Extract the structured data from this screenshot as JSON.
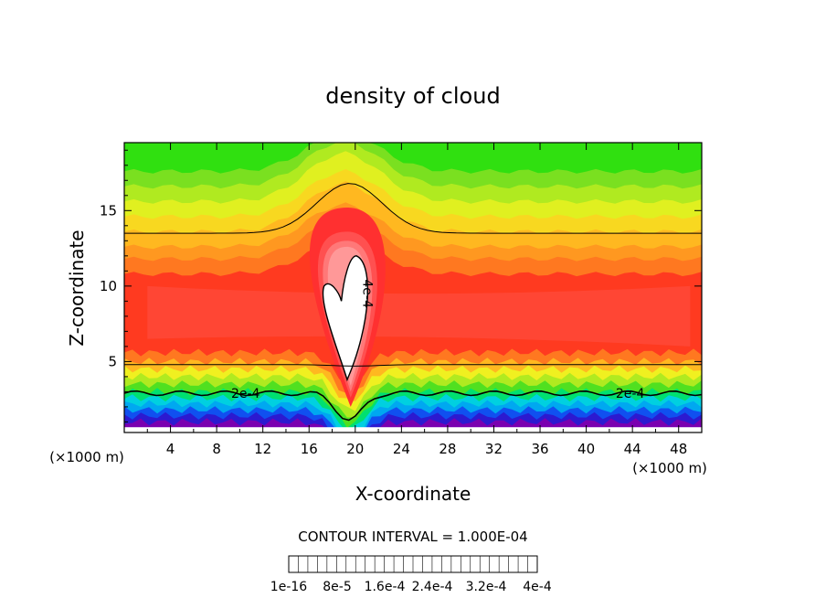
{
  "chart_data": {
    "type": "contour",
    "title": "density of cloud",
    "xlabel": "X-coordinate",
    "ylabel": "Z-coordinate",
    "x_unit": "(×1000 m)",
    "x_unit_right": "(×1000 m)",
    "xlim": [
      0,
      50
    ],
    "ylim": [
      0.3,
      19.5
    ],
    "x_ticks": [
      4,
      8,
      12,
      16,
      20,
      24,
      28,
      32,
      36,
      40,
      44,
      48
    ],
    "y_ticks": [
      5,
      10,
      15
    ],
    "contour_interval_text": "CONTOUR INTERVAL = 1.000E-04",
    "contour_labels": [
      {
        "text": "2e-4",
        "x": 10.5,
        "z": 2.9
      },
      {
        "text": "2e-4",
        "x": 43.8,
        "z": 2.9
      },
      {
        "text": "4e-4",
        "x": 20.7,
        "z": 9.5
      }
    ],
    "colorbar": {
      "colors": [
        "#7a00b0",
        "#5000b8",
        "#2c1ad0",
        "#1830e0",
        "#1050f0",
        "#0a78f5",
        "#00a8f0",
        "#00d0e0",
        "#00e4b0",
        "#00e070",
        "#20e020",
        "#50e020",
        "#80e020",
        "#b0ea20",
        "#d8f020",
        "#f0f020",
        "#f8d820",
        "#ffb820",
        "#ff9820",
        "#ff7820",
        "#ff5a20",
        "#ff3a20",
        "#ff3030",
        "#ff5050",
        "#ff7878",
        "#ff9898"
      ],
      "tick_labels": [
        "1e-16",
        "8e-5",
        "1.6e-4",
        "2.4e-4",
        "3.2e-4",
        "4e-4"
      ]
    }
  }
}
